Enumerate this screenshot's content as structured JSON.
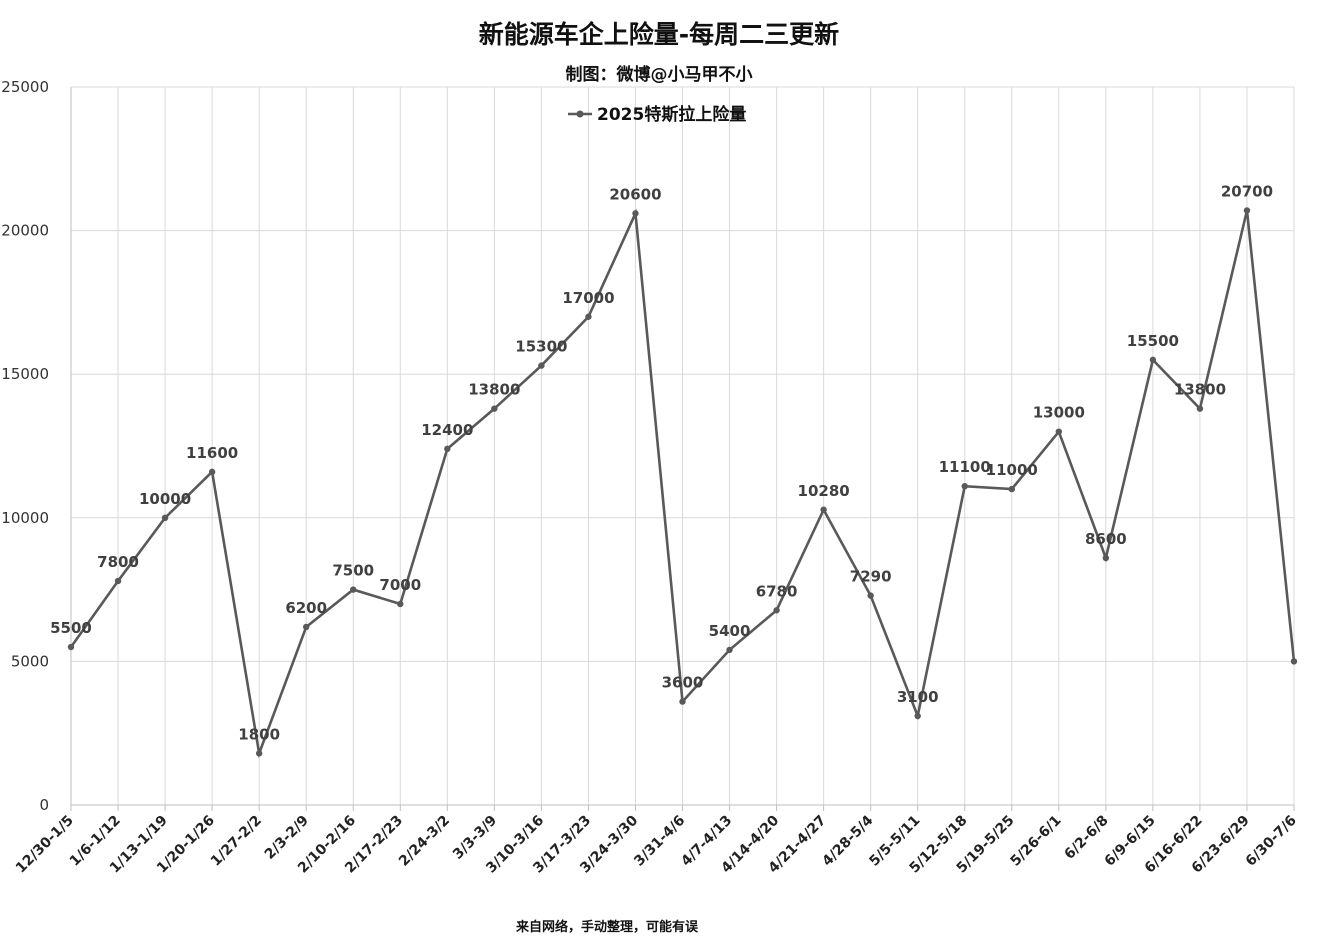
{
  "chart_data": {
    "type": "line",
    "title": "新能源车企上险量-每周二三更新",
    "subtitle": "制图：微博@小马甲不小",
    "footer": "来自网络，手动整理，可能有误",
    "legend_position": "top-center",
    "grid": true,
    "ylim": [
      0,
      25000
    ],
    "yticks": [
      0,
      5000,
      10000,
      15000,
      20000,
      25000
    ],
    "categories": [
      "12/30-1/5",
      "1/6-1/12",
      "1/13-1/19",
      "1/20-1/26",
      "1/27-2/2",
      "2/3-2/9",
      "2/10-2/16",
      "2/17-2/23",
      "2/24-3/2",
      "3/3-3/9",
      "3/10-3/16",
      "3/17-3/23",
      "3/24-3/30",
      "3/31-4/6",
      "4/7-4/13",
      "4/14-4/20",
      "4/21-4/27",
      "4/28-5/4",
      "5/5-5/11",
      "5/12-5/18",
      "5/19-5/25",
      "5/26-6/1",
      "6/2-6/8",
      "6/9-6/15",
      "6/16-6/22",
      "6/23-6/29",
      "6/30-7/6"
    ],
    "series": [
      {
        "name": "2025特斯拉上险量",
        "color": "#595959",
        "values": [
          5500,
          7800,
          10000,
          11600,
          1800,
          6200,
          7500,
          7000,
          12400,
          13800,
          15300,
          17000,
          20600,
          3600,
          5400,
          6780,
          10280,
          7290,
          3100,
          11100,
          11000,
          13000,
          8600,
          15500,
          13800,
          20700,
          5000
        ],
        "labels": [
          "5500",
          "7800",
          "10000",
          "11600",
          "1800",
          "6200",
          "7500",
          "7000",
          "12400",
          "13800",
          "15300",
          "17000",
          "20600",
          "3600",
          "5400",
          "6780",
          "10280",
          "7290",
          "3100",
          "11100",
          "11000",
          "13000",
          "8600",
          "15500",
          "13800",
          "20700",
          ""
        ]
      }
    ]
  }
}
